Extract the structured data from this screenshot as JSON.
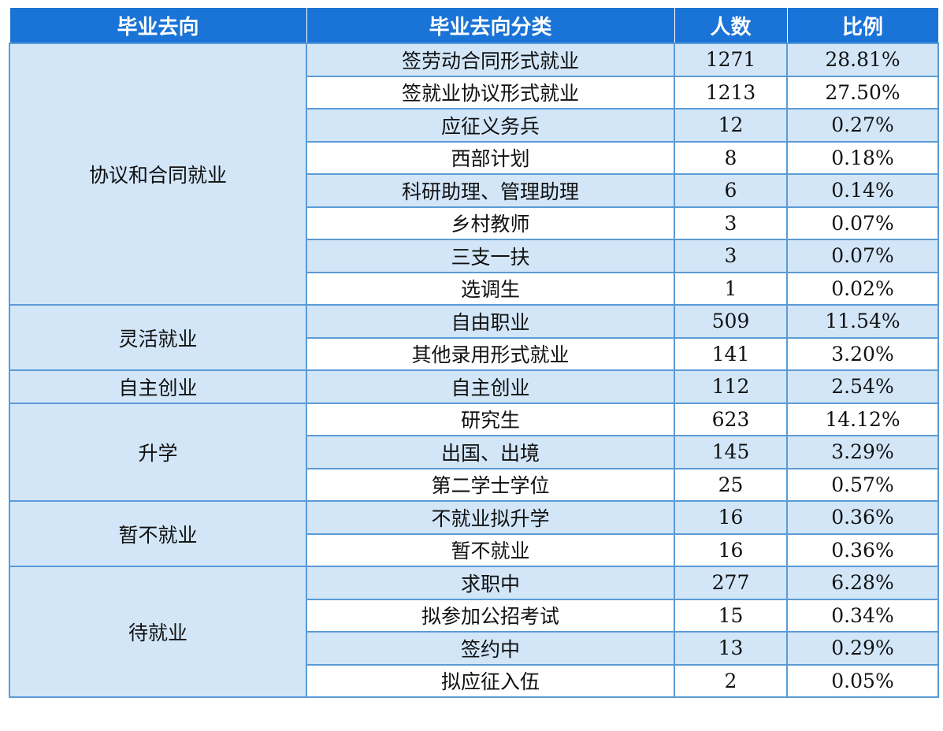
{
  "header": {
    "col1": "毕业去向",
    "col2": "毕业去向分类",
    "col3": "人数",
    "col4": "比例"
  },
  "rows": [
    {
      "category": "签劳动合同形式就业",
      "count": "1271",
      "ratio": "28.81%"
    },
    {
      "category": "签就业协议形式就业",
      "count": "1213",
      "ratio": "27.50%"
    },
    {
      "category": "应征义务兵",
      "count": "12",
      "ratio": "0.27%"
    },
    {
      "category": "西部计划",
      "count": "8",
      "ratio": "0.18%"
    },
    {
      "category": "科研助理、管理助理",
      "count": "6",
      "ratio": "0.14%"
    },
    {
      "category": "乡村教师",
      "count": "3",
      "ratio": "0.07%"
    },
    {
      "category": "三支一扶",
      "count": "3",
      "ratio": "0.07%"
    },
    {
      "category": "选调生",
      "count": "1",
      "ratio": "0.02%"
    },
    {
      "category": "自由职业",
      "count": "509",
      "ratio": "11.54%"
    },
    {
      "category": "其他录用形式就业",
      "count": "141",
      "ratio": "3.20%"
    },
    {
      "category": "自主创业",
      "count": "112",
      "ratio": "2.54%"
    },
    {
      "category": "研究生",
      "count": "623",
      "ratio": "14.12%"
    },
    {
      "category": "出国、出境",
      "count": "145",
      "ratio": "3.29%"
    },
    {
      "category": "第二学士学位",
      "count": "25",
      "ratio": "0.57%"
    },
    {
      "category": "不就业拟升学",
      "count": "16",
      "ratio": "0.36%"
    },
    {
      "category": "暂不就业",
      "count": "16",
      "ratio": "0.36%"
    },
    {
      "category": "求职中",
      "count": "277",
      "ratio": "6.28%"
    },
    {
      "category": "拟参加公招考试",
      "count": "15",
      "ratio": "0.34%"
    },
    {
      "category": "签约中",
      "count": "13",
      "ratio": "0.29%"
    },
    {
      "category": "拟应征入伍",
      "count": "2",
      "ratio": "0.05%"
    }
  ],
  "groups": [
    {
      "label": "协议和合同就业",
      "rowspan": 8
    },
    {
      "label": "灵活就业",
      "rowspan": 2
    },
    {
      "label": "自主创业",
      "rowspan": 1
    },
    {
      "label": "升学",
      "rowspan": 3
    },
    {
      "label": "暂不就业",
      "rowspan": 2
    },
    {
      "label": "待就业",
      "rowspan": 4
    }
  ]
}
